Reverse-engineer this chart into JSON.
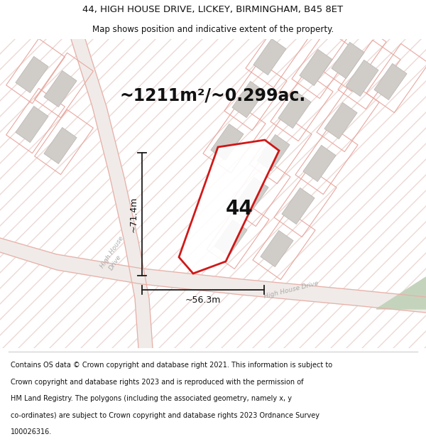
{
  "title_line1": "44, HIGH HOUSE DRIVE, LICKEY, BIRMINGHAM, B45 8ET",
  "title_line2": "Map shows position and indicative extent of the property.",
  "area_text": "~1211m²/~0.299ac.",
  "label_44": "44",
  "dim_height": "~71.4m",
  "dim_width": "~56.3m",
  "footer_lines": [
    "Contains OS data © Crown copyright and database right 2021. This information is subject to",
    "Crown copyright and database rights 2023 and is reproduced with the permission of",
    "HM Land Registry. The polygons (including the associated geometry, namely x, y",
    "co-ordinates) are subject to Crown copyright and database rights 2023 Ordnance Survey",
    "100026316."
  ],
  "map_bg": "#f7f3f1",
  "road_fill": "#f0ebe8",
  "road_edge": "#e8b0a8",
  "plot_edge": "#e8a8a0",
  "plot_outline_color": "#cc0000",
  "building_fc": "#d0ccc8",
  "building_ec": "#b8b4b0",
  "green_color": "#c4d4bc",
  "dim_line_color": "#1a1a1a",
  "stripe_color": "#ecd8d4"
}
